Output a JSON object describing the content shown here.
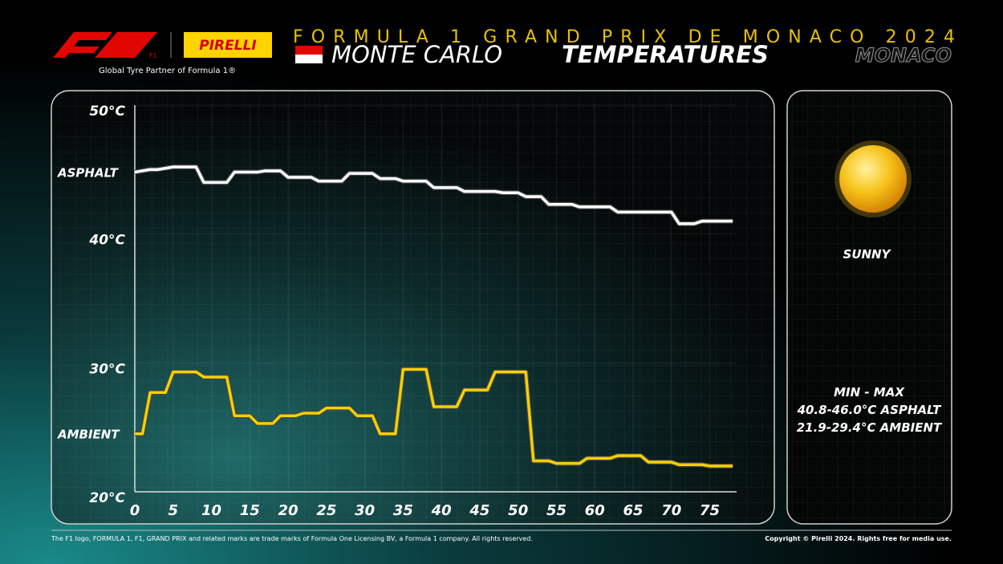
{
  "header": {
    "brand": "F1",
    "partner": "PIRELLI",
    "tagline": "Global Tyre Partner of Formula 1®",
    "event": "FORMULA 1 GRAND PRIX DE MONACO 2024",
    "place": "MONTE CARLO",
    "topic": "TEMPERATURES",
    "country": "MONACO"
  },
  "panel": {
    "weather": "SUNNY",
    "minmax": "MIN  -  MAX",
    "asphalt": "40.8-46.0°C ASPHALT",
    "ambient": "21.9-29.4°C AMBIENT"
  },
  "footer": {
    "left": "The F1 logo, FORMULA 1, F1, GRAND PRIX and related marks are trade marks of Formula One Licensing BV, a Formula 1 company. All rights reserved.",
    "right": "Copyright © Pirelli 2024. Rights free for media use."
  },
  "chart_data": {
    "type": "line",
    "x": [
      0,
      1,
      2,
      3,
      4,
      5,
      6,
      7,
      8,
      9,
      10,
      11,
      12,
      13,
      14,
      15,
      16,
      17,
      18,
      19,
      20,
      21,
      22,
      23,
      24,
      25,
      26,
      27,
      28,
      29,
      30,
      31,
      32,
      33,
      34,
      35,
      36,
      37,
      38,
      39,
      40,
      41,
      42,
      43,
      44,
      45,
      46,
      47,
      48,
      49,
      50,
      51,
      52,
      53,
      54,
      55,
      56,
      57,
      58,
      59,
      60,
      61,
      62,
      63,
      64,
      65,
      66,
      67,
      68,
      69,
      70,
      71,
      72,
      73,
      74,
      75,
      76,
      77,
      78
    ],
    "series": [
      {
        "name": "ASPHALT",
        "color": "#ffffff",
        "values": [
          44.8,
          44.9,
          45.0,
          45.0,
          45.1,
          45.2,
          45.2,
          45.2,
          45.2,
          44.0,
          44.0,
          44.0,
          44.0,
          44.8,
          44.8,
          44.8,
          44.8,
          44.9,
          44.9,
          44.9,
          44.4,
          44.4,
          44.4,
          44.4,
          44.1,
          44.1,
          44.1,
          44.1,
          44.7,
          44.7,
          44.7,
          44.7,
          44.3,
          44.3,
          44.3,
          44.1,
          44.1,
          44.1,
          44.1,
          43.6,
          43.6,
          43.6,
          43.6,
          43.3,
          43.3,
          43.3,
          43.3,
          43.3,
          43.2,
          43.2,
          43.2,
          42.9,
          42.9,
          42.9,
          42.3,
          42.3,
          42.3,
          42.3,
          42.1,
          42.1,
          42.1,
          42.1,
          42.1,
          41.7,
          41.7,
          41.7,
          41.7,
          41.7,
          41.7,
          41.7,
          41.7,
          40.8,
          40.8,
          40.8,
          41.0,
          41.0,
          41.0,
          41.0,
          41.0
        ]
      },
      {
        "name": "AMBIENT",
        "color": "#f5d000",
        "values": [
          24.5,
          24.5,
          27.7,
          27.7,
          27.7,
          29.3,
          29.3,
          29.3,
          29.3,
          28.9,
          28.9,
          28.9,
          28.9,
          25.9,
          25.9,
          25.9,
          25.3,
          25.3,
          25.3,
          25.9,
          25.9,
          25.9,
          26.1,
          26.1,
          26.1,
          26.5,
          26.5,
          26.5,
          26.5,
          25.9,
          25.9,
          25.9,
          24.5,
          24.5,
          24.5,
          29.5,
          29.5,
          29.5,
          29.5,
          26.6,
          26.6,
          26.6,
          26.6,
          27.9,
          27.9,
          27.9,
          27.9,
          29.3,
          29.3,
          29.3,
          29.3,
          29.3,
          22.4,
          22.4,
          22.4,
          22.2,
          22.2,
          22.2,
          22.2,
          22.6,
          22.6,
          22.6,
          22.6,
          22.8,
          22.8,
          22.8,
          22.8,
          22.3,
          22.3,
          22.3,
          22.3,
          22.1,
          22.1,
          22.1,
          22.1,
          22.0,
          22.0,
          22.0,
          22.0
        ]
      }
    ],
    "xlim": [
      0,
      78.5
    ],
    "xticks": [
      0,
      5,
      10,
      15,
      20,
      25,
      30,
      35,
      40,
      45,
      50,
      55,
      60,
      65,
      70,
      75
    ],
    "ylim": [
      20,
      50
    ],
    "yticks": [
      {
        "value": 20,
        "label": "20°C"
      },
      {
        "value": 30,
        "label": "30°C"
      },
      {
        "value": 40,
        "label": "40°C"
      },
      {
        "value": 50,
        "label": "50°C"
      }
    ],
    "grid": true
  }
}
